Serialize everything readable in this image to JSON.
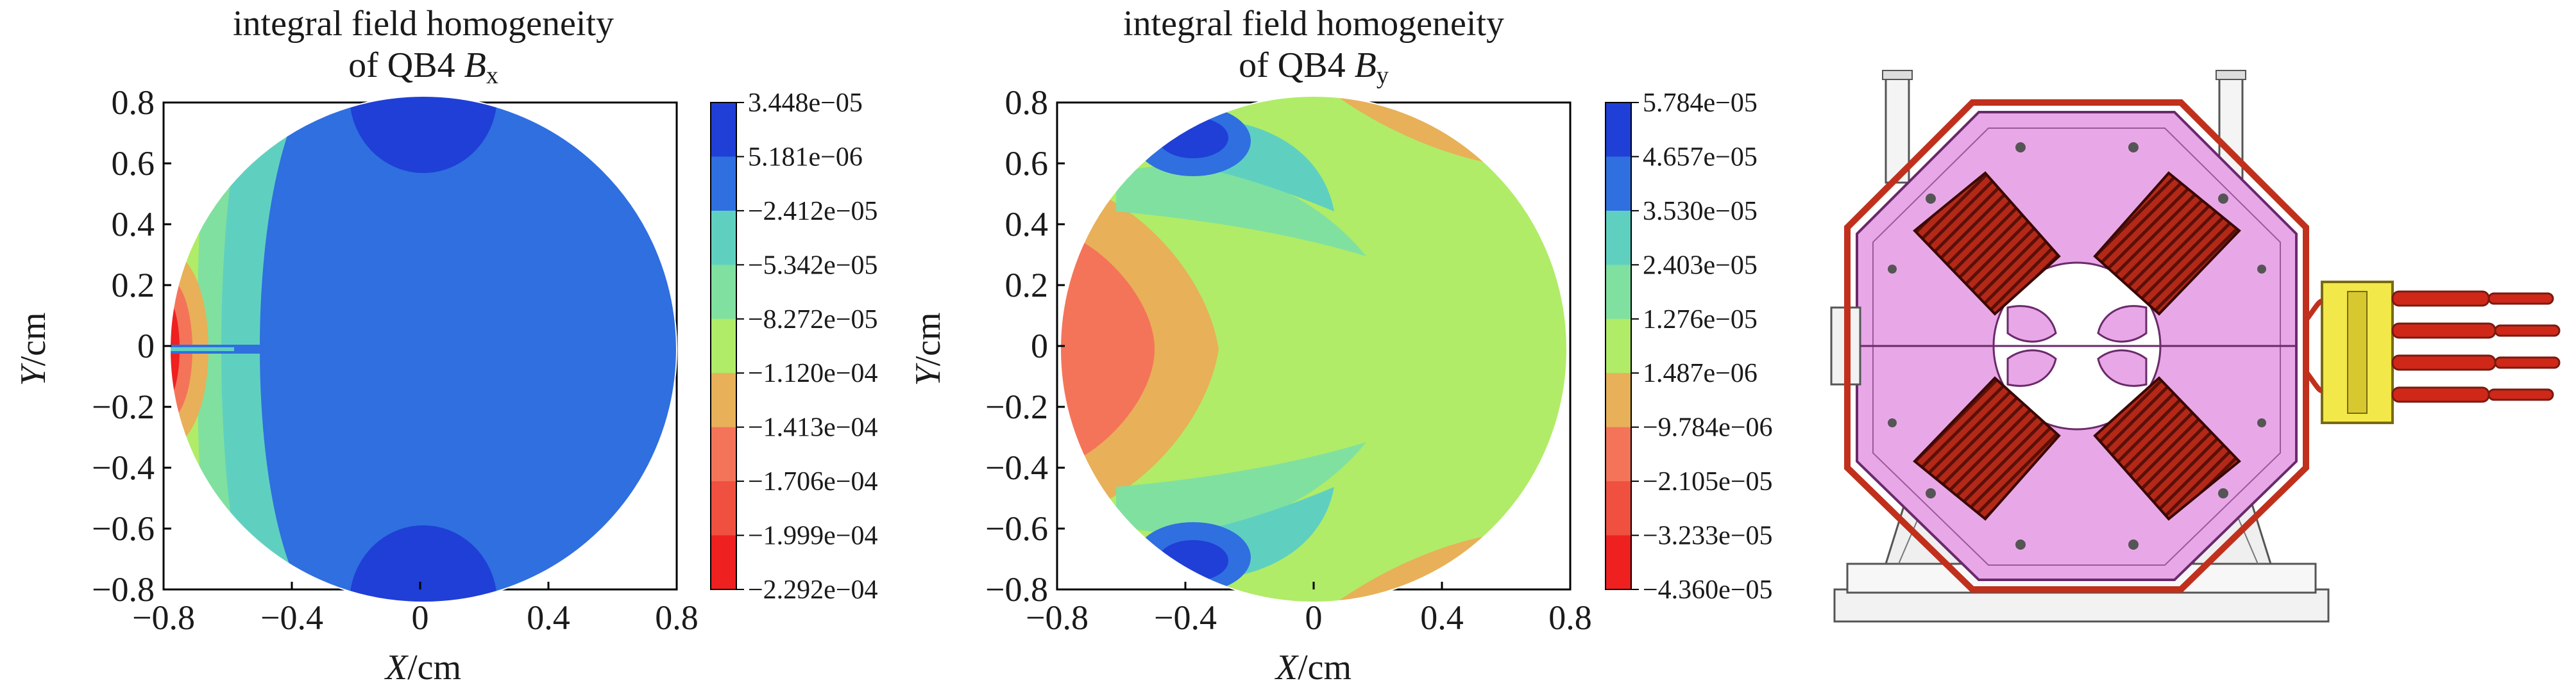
{
  "chart_data": [
    {
      "type": "heatmap",
      "title": "integral field homogeneity",
      "subtitle_prefix": "of QB4 ",
      "subtitle_symbol": "B",
      "subtitle_sub": "x",
      "xlabel_var": "X",
      "xlabel_unit": "/cm",
      "ylabel_var": "Y",
      "ylabel_unit": "/cm",
      "xlim": [
        -0.8,
        0.8
      ],
      "ylim": [
        -0.8,
        0.8
      ],
      "xticks": [
        "−0.8",
        "−0.4",
        "0",
        "0.4",
        "0.8"
      ],
      "yticks": [
        "0.8",
        "0.6",
        "0.4",
        "0.2",
        "0",
        "−0.2",
        "−0.4",
        "−0.6",
        "−0.8"
      ],
      "colorbar_labels": [
        "3.448e−05",
        "5.181e−06",
        "−2.412e−05",
        "−5.342e−05",
        "−8.272e−05",
        "−1.120e−04",
        "−1.413e−04",
        "−1.706e−04",
        "−1.999e−04",
        "−2.292e−04"
      ],
      "colorbar_colors": [
        "#1f3fd6",
        "#2f6fe0",
        "#5fd0c0",
        "#80e0a0",
        "#b0ec68",
        "#e8b058",
        "#f4745a",
        "#f05040",
        "#ee2020"
      ],
      "grid": false,
      "regions": [
        {
          "name": "upper-lobe",
          "level": 0,
          "shape": "ellipse",
          "cx": 0.0,
          "cy": 0.72,
          "rx": 0.2,
          "ry": 0.24
        },
        {
          "name": "lower-lobe",
          "level": 0,
          "shape": "ellipse",
          "cx": 0.0,
          "cy": -0.72,
          "rx": 0.2,
          "ry": 0.24
        },
        {
          "name": "left-spike",
          "level": 1,
          "shape": "rect",
          "x0": -0.8,
          "x1": -0.2,
          "y0": -0.015,
          "y1": 0.015
        }
      ]
    },
    {
      "type": "heatmap",
      "title": "integral field homogeneity",
      "subtitle_prefix": "of QB4 ",
      "subtitle_symbol": "B",
      "subtitle_sub": "y",
      "xlabel_var": "X",
      "xlabel_unit": "/cm",
      "ylabel_var": "Y",
      "ylabel_unit": "/cm",
      "xlim": [
        -0.8,
        0.8
      ],
      "ylim": [
        -0.8,
        0.8
      ],
      "xticks": [
        "−0.8",
        "−0.4",
        "0",
        "0.4",
        "0.8"
      ],
      "yticks": [
        "0.8",
        "0.6",
        "0.4",
        "0.2",
        "0",
        "−0.2",
        "−0.4",
        "−0.6",
        "−0.8"
      ],
      "colorbar_labels": [
        "5.784e−05",
        "4.657e−05",
        "3.530e−05",
        "2.403e−05",
        "1.276e−05",
        "1.487e−06",
        "−9.784e−06",
        "−2.105e−05",
        "−3.233e−05",
        "−4.360e−05"
      ],
      "colorbar_colors": [
        "#1f3fd6",
        "#2f6fe0",
        "#5fd0c0",
        "#80e0a0",
        "#b0ec68",
        "#e8b058",
        "#f4745a",
        "#f05040",
        "#ee2020"
      ],
      "grid": false
    }
  ],
  "figure": {
    "name": "quadrupole-magnet-drawing",
    "colors": {
      "yoke": "#e8a8e8",
      "coil": "#c0301c",
      "coil_dark": "#7a1a10",
      "frame": "#f2f2f2",
      "cable": "#d02818",
      "connector": "#f2e84a"
    }
  }
}
